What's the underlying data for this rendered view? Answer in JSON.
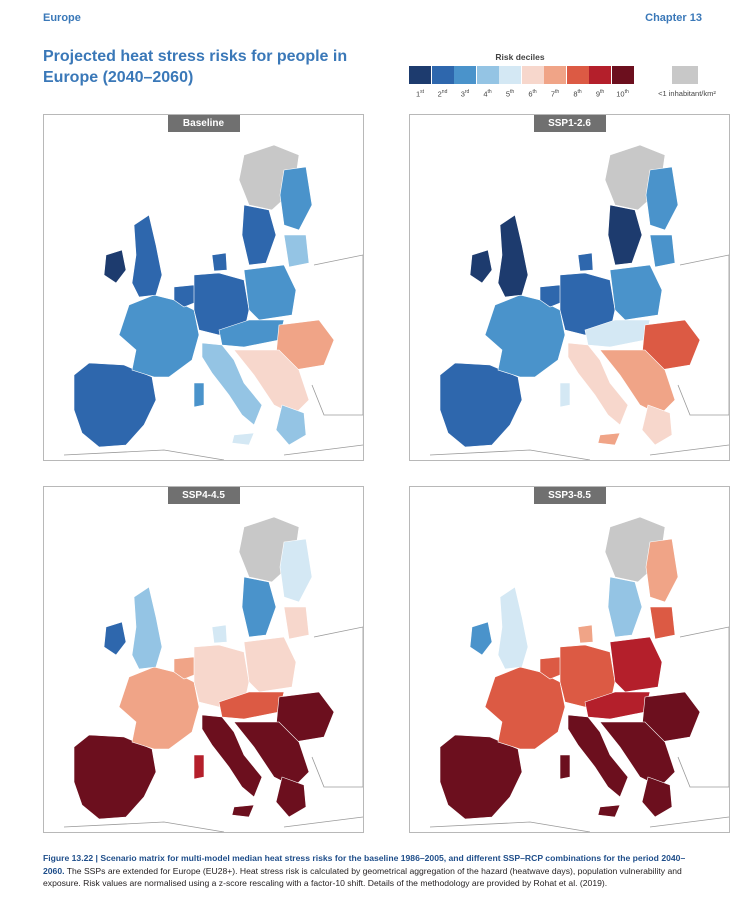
{
  "header": {
    "left": "Europe",
    "right": "Chapter 13"
  },
  "title": "Projected heat stress risks for people in Europe (2040–2060)",
  "legend": {
    "title": "Risk deciles",
    "deciles": [
      {
        "num": "1",
        "sup": "st",
        "color": "#1d3b6e"
      },
      {
        "num": "2",
        "sup": "nd",
        "color": "#2e67ad"
      },
      {
        "num": "3",
        "sup": "rd",
        "color": "#4a93cb"
      },
      {
        "num": "4",
        "sup": "th",
        "color": "#94c4e4"
      },
      {
        "num": "5",
        "sup": "th",
        "color": "#d4e8f4"
      },
      {
        "num": "6",
        "sup": "th",
        "color": "#f7d7cc"
      },
      {
        "num": "7",
        "sup": "th",
        "color": "#f0a487"
      },
      {
        "num": "8",
        "sup": "th",
        "color": "#dc5a44"
      },
      {
        "num": "9",
        "sup": "th",
        "color": "#b41f2b"
      },
      {
        "num": "10",
        "sup": "th",
        "color": "#6c0f1e"
      }
    ],
    "low_density_label": "<1 inhabitant/km²",
    "low_density_color": "#c8c8c8"
  },
  "panels": [
    {
      "label": "Baseline",
      "scenario": "baseline"
    },
    {
      "label": "SSP1-2.6",
      "scenario": "ssp126"
    },
    {
      "label": "SSP4-4.5",
      "scenario": "ssp445"
    },
    {
      "label": "SSP3-8.5",
      "scenario": "ssp385"
    }
  ],
  "caption": {
    "lead": "Figure 13.22 | Scenario matrix for multi-model median heat stress risks for the baseline 1986–2005, and different SSP–RCP combinations for the period 2040–2060.",
    "body": " The SSPs are extended for Europe (EU28+). Heat stress risk is calculated by geometrical aggregation of the hazard (heatwave days), population vulnerability and exposure. Risk values are normalised using a z-score rescaling with a factor-10 shift. Details of the methodology are provided by Rohat et al. (2019)."
  }
}
